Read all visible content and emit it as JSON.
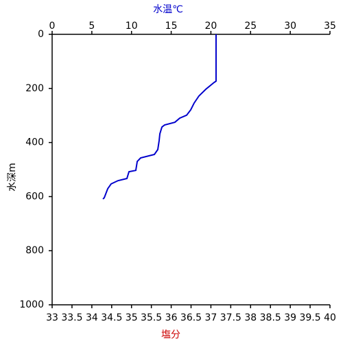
{
  "chart_data": {
    "type": "line",
    "title": "水温℃",
    "xlabel": "塩分",
    "ylabel": "水深m",
    "series": [
      {
        "color": "#0000cc",
        "x": [
          20.65,
          20.65,
          20.4,
          19.36,
          18.49,
          17.89,
          17.46,
          16.94,
          16.07,
          15.47,
          14.17,
          13.83,
          13.57,
          13.48,
          13.31,
          12.88,
          11.15,
          10.72,
          10.54,
          9.68,
          9.42,
          8.3,
          7.43,
          7.0,
          6.57,
          6.4
        ],
        "values": [
          0,
          173,
          178,
          203,
          228,
          254,
          279,
          299,
          310,
          325,
          335,
          343,
          368,
          393,
          426,
          444,
          457,
          470,
          503,
          508,
          533,
          541,
          553,
          571,
          604,
          609
        ]
      }
    ],
    "xlim": [
      0,
      35
    ],
    "xticks": [
      0,
      5,
      10,
      15,
      20,
      25,
      30,
      35
    ],
    "x2lim": [
      33,
      40
    ],
    "x2ticks": [
      33,
      33.5,
      34,
      34.5,
      35,
      35.5,
      36,
      36.5,
      37,
      37.5,
      38,
      38.5,
      39,
      39.5,
      40
    ],
    "ylim": [
      0,
      1000
    ],
    "yticks": [
      0,
      200,
      400,
      600,
      800,
      1000
    ],
    "y_inverted": true
  }
}
